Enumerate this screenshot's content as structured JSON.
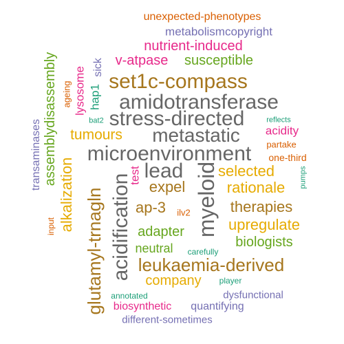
{
  "colors": {
    "orange": "#d95f02",
    "slate": "#7570b3",
    "magenta": "#e7298a",
    "green": "#66a61e",
    "gold": "#e6ab02",
    "brown": "#a6761d",
    "gray": "#666666",
    "teal": "#1b9e77"
  },
  "words": [
    {
      "text": "unexpected-phenotypes",
      "color": "orange"
    },
    {
      "text": "metabolismcopyright",
      "color": "slate"
    },
    {
      "text": "nutrient-induced",
      "color": "magenta"
    },
    {
      "text": "v-atpase",
      "color": "magenta"
    },
    {
      "text": "susceptible",
      "color": "green"
    },
    {
      "text": "set1c-compass",
      "color": "brown"
    },
    {
      "text": "amidotransferase",
      "color": "gray"
    },
    {
      "text": "stress-directed",
      "color": "gray"
    },
    {
      "text": "metastatic",
      "color": "gray"
    },
    {
      "text": "tumours",
      "color": "gold"
    },
    {
      "text": "microenvironment",
      "color": "gray"
    },
    {
      "text": "lead",
      "color": "gray"
    },
    {
      "text": "selected",
      "color": "gold"
    },
    {
      "text": "expel",
      "color": "brown"
    },
    {
      "text": "rationale",
      "color": "gold"
    },
    {
      "text": "ap-3",
      "color": "brown"
    },
    {
      "text": "therapies",
      "color": "brown"
    },
    {
      "text": "adapter",
      "color": "green"
    },
    {
      "text": "upregulate",
      "color": "gold"
    },
    {
      "text": "neutral",
      "color": "green"
    },
    {
      "text": "biologists",
      "color": "green"
    },
    {
      "text": "leukaemia-derived",
      "color": "brown"
    },
    {
      "text": "company",
      "color": "gold"
    },
    {
      "text": "biosynthetic",
      "color": "magenta"
    },
    {
      "text": "quantifying",
      "color": "slate"
    },
    {
      "text": "dysfunctional",
      "color": "slate"
    },
    {
      "text": "different-sometimes",
      "color": "slate"
    },
    {
      "text": "annotated",
      "color": "teal"
    },
    {
      "text": "player",
      "color": "teal"
    },
    {
      "text": "carefully",
      "color": "teal"
    },
    {
      "text": "ilv2",
      "color": "orange"
    },
    {
      "text": "test",
      "color": "magenta"
    },
    {
      "text": "acidity",
      "color": "magenta"
    },
    {
      "text": "reflects",
      "color": "teal"
    },
    {
      "text": "partake",
      "color": "orange"
    },
    {
      "text": "one-third",
      "color": "orange"
    },
    {
      "text": "pumps",
      "color": "teal"
    },
    {
      "text": "transaminases",
      "color": "slate"
    },
    {
      "text": "assemblydisassembly",
      "color": "green"
    },
    {
      "text": "alkalization",
      "color": "gold"
    },
    {
      "text": "ageing",
      "color": "orange"
    },
    {
      "text": "lysosome",
      "color": "magenta"
    },
    {
      "text": "hap1",
      "color": "teal"
    },
    {
      "text": "sick",
      "color": "slate"
    },
    {
      "text": "bat2",
      "color": "teal"
    },
    {
      "text": "input",
      "color": "orange"
    },
    {
      "text": "glutamyl-trnagln",
      "color": "brown"
    },
    {
      "text": "acidification",
      "color": "gray"
    },
    {
      "text": "myeloid",
      "color": "gray"
    }
  ]
}
